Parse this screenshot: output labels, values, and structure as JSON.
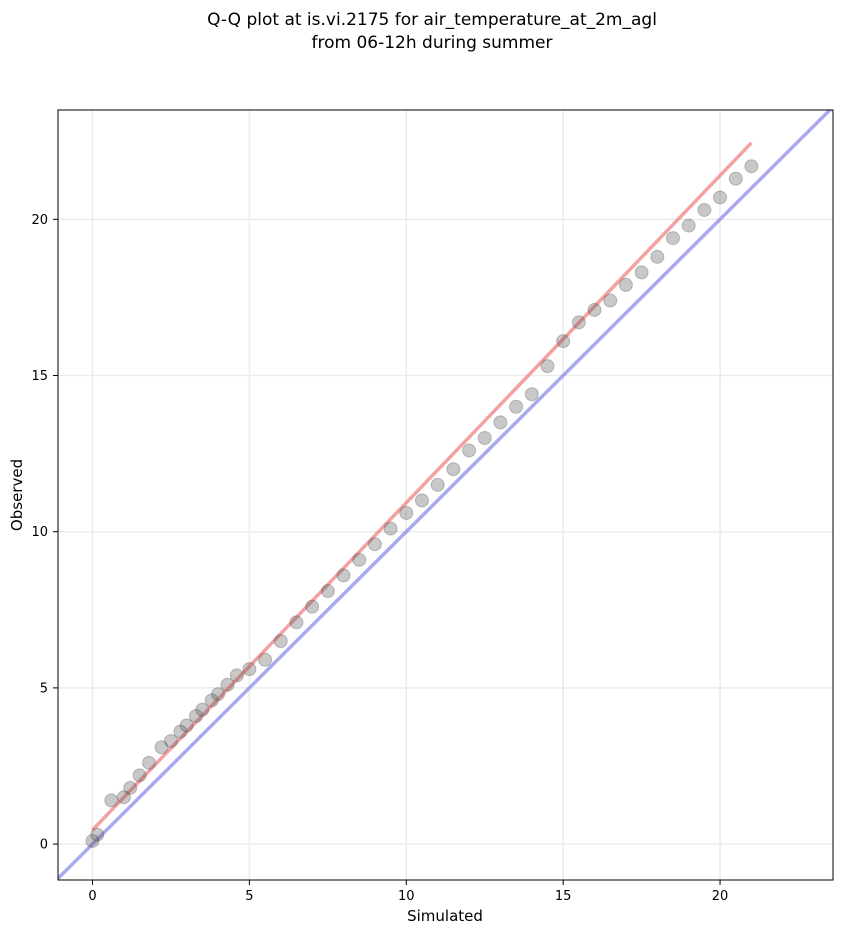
{
  "chart_data": {
    "type": "scatter",
    "title_lines": [
      "Q-Q plot at is.vi.2175 for air_temperature_at_2m_agl",
      "from 06-12h during summer"
    ],
    "xlabel": "Simulated",
    "ylabel": "Observed",
    "xlim": [
      -1.1,
      23.6
    ],
    "ylim": [
      -1.15,
      23.5
    ],
    "xticks": [
      0,
      5,
      10,
      15,
      20
    ],
    "yticks": [
      0,
      5,
      10,
      15,
      20
    ],
    "grid": true,
    "colors": {
      "points": "#555555",
      "fit_line": "#ef6f6f",
      "identity_line": "#7b7be8",
      "grid": "#ebebeb"
    },
    "identity_line": {
      "from": [
        -1.1,
        -1.1
      ],
      "to": [
        23.6,
        23.6
      ]
    },
    "fit_line": {
      "from": [
        0.0,
        0.45
      ],
      "to": [
        21.0,
        22.45
      ]
    },
    "quantiles": {
      "sim": [
        0.0,
        0.15,
        0.6,
        1.0,
        1.2,
        1.5,
        1.8,
        2.2,
        2.5,
        2.8,
        3.0,
        3.3,
        3.5,
        3.8,
        4.0,
        4.3,
        4.6,
        5.0,
        5.5,
        6.0,
        6.5,
        7.0,
        7.5,
        8.0,
        8.5,
        9.0,
        9.5,
        10.0,
        10.5,
        11.0,
        11.5,
        12.0,
        12.5,
        13.0,
        13.5,
        14.0,
        14.5,
        15.0,
        15.5,
        16.0,
        16.5,
        17.0,
        17.5,
        18.0,
        18.5,
        19.0,
        19.5,
        20.0,
        20.5,
        21.0
      ],
      "obs": [
        0.1,
        0.3,
        1.4,
        1.5,
        1.8,
        2.2,
        2.6,
        3.1,
        3.3,
        3.6,
        3.8,
        4.1,
        4.3,
        4.6,
        4.8,
        5.1,
        5.4,
        5.6,
        5.9,
        6.5,
        7.1,
        7.6,
        8.1,
        8.6,
        9.1,
        9.6,
        10.1,
        10.6,
        11.0,
        11.5,
        12.0,
        12.6,
        13.0,
        13.5,
        14.0,
        14.4,
        15.3,
        16.1,
        16.7,
        17.1,
        17.4,
        17.9,
        18.3,
        18.8,
        19.4,
        19.8,
        20.3,
        20.7,
        21.3,
        21.7
      ]
    }
  }
}
